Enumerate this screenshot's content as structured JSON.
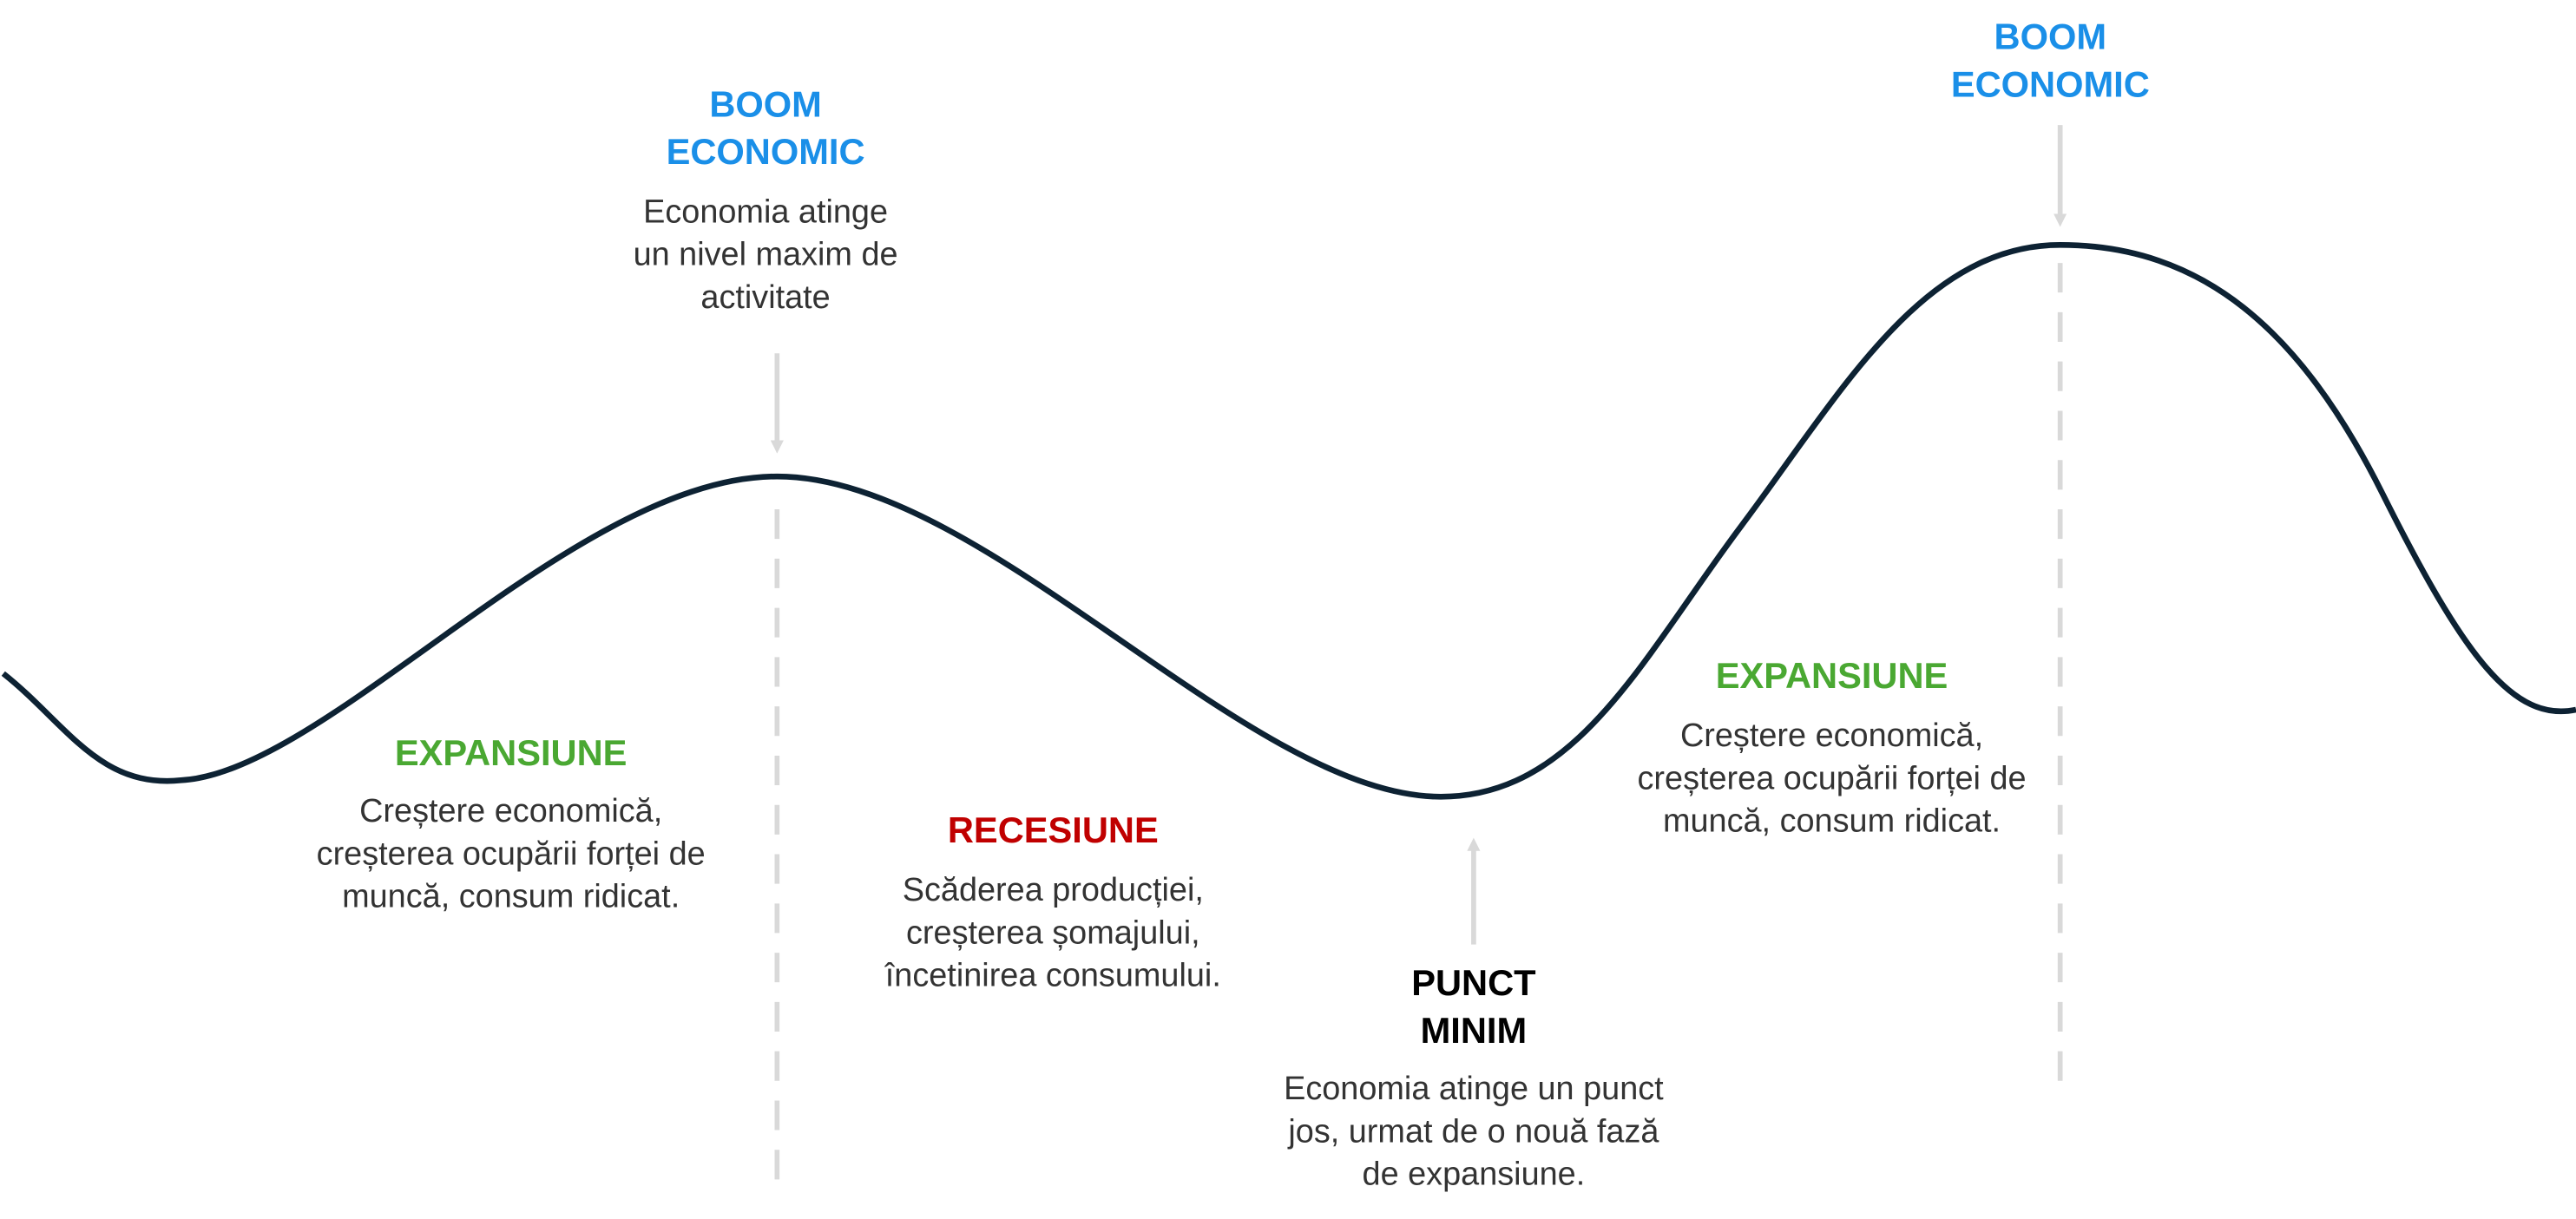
{
  "annotations": [
    {
      "title": [
        "BOOM",
        "ECONOMIC"
      ],
      "description": [
        "Economia atinge",
        "un nivel maxim de",
        "activitate"
      ]
    },
    {
      "title": [
        "EXPANSIUNE"
      ],
      "description": [
        "Creștere economică,",
        "creșterea ocupării forței de",
        "muncă, consum ridicat."
      ]
    },
    {
      "title": [
        "RECESIUNE"
      ],
      "description": [
        "Scăderea producției,",
        "creșterea șomajului,",
        "încetinirea consumului."
      ]
    },
    {
      "title": [
        "PUNCT",
        "MINIM"
      ],
      "description": [
        "Economia atinge un punct",
        "jos, urmat de o nouă fază",
        "de expansiune."
      ]
    },
    {
      "title": [
        "EXPANSIUNE"
      ],
      "description": [
        "Creștere economică,",
        "creșterea ocupării forței de",
        "muncă, consum ridicat."
      ]
    },
    {
      "title": [
        "BOOM",
        "ECONOMIC"
      ],
      "description": []
    }
  ]
}
